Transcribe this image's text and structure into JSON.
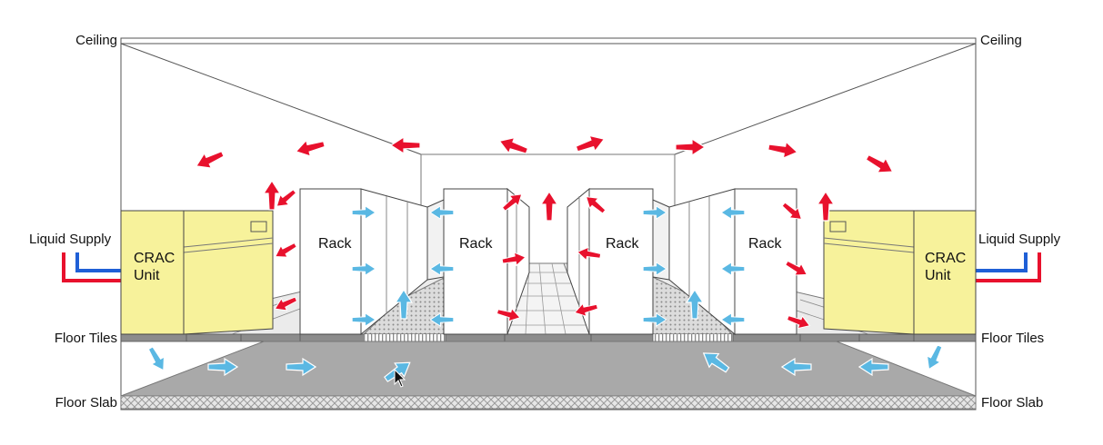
{
  "labels": {
    "ceiling_left": "Ceiling",
    "ceiling_right": "Ceiling",
    "liquid_left": "Liquid Supply",
    "liquid_right": "Liquid Supply",
    "floor_tiles_left": "Floor Tiles",
    "floor_tiles_right": "Floor Tiles",
    "floor_slab_left": "Floor Slab",
    "floor_slab_right": "Floor Slab"
  },
  "crac_left": {
    "line1": "CRAC",
    "line2": "Unit"
  },
  "crac_right": {
    "line1": "CRAC",
    "line2": "Unit"
  },
  "racks": [
    "Rack",
    "Rack",
    "Rack",
    "Rack"
  ],
  "colors": {
    "hot_air": "#e8112d",
    "cool_air": "#5ab8e3",
    "crac_fill": "#f7f29b",
    "liquid_hot": "#e8112d",
    "liquid_cold": "#1f5fd6",
    "plenum_floor": "#a9a9a9",
    "slab_hatch": "#cfcfcf"
  }
}
